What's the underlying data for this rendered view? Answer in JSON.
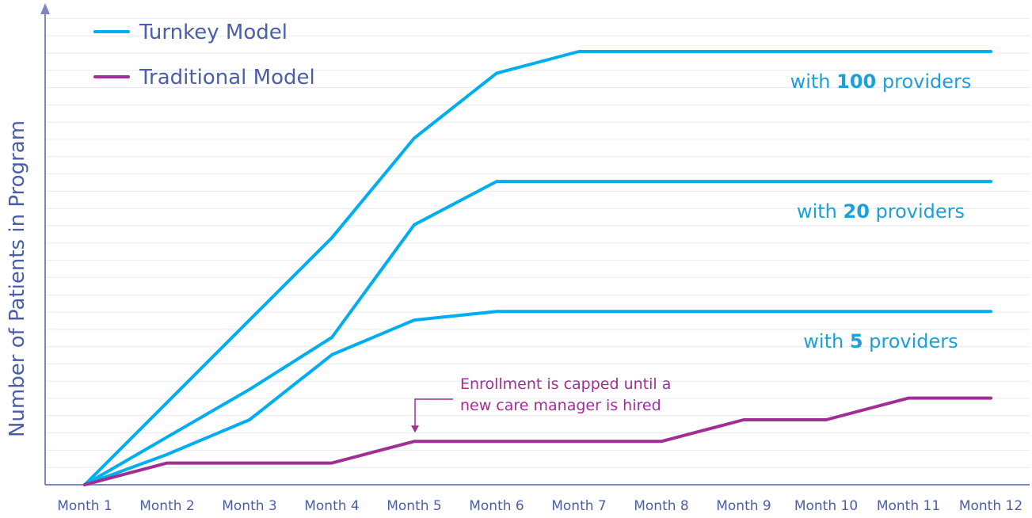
{
  "chart_data": {
    "type": "line",
    "ylabel": "Number of Patients in Program",
    "xlabel": "",
    "ylim": [
      0,
      100
    ],
    "grid": true,
    "legend_position": "top-left",
    "categories": [
      "Month 1",
      "Month 2",
      "Month 3",
      "Month 4",
      "Month 5",
      "Month 6",
      "Month 7",
      "Month 8",
      "Month 9",
      "Month 10",
      "Month 11",
      "Month 12"
    ],
    "legend": [
      {
        "name": "Turnkey Model",
        "color": "#00aeef"
      },
      {
        "name": "Traditional Model",
        "color": "#a22e93"
      }
    ],
    "series": [
      {
        "group": "Turnkey Model",
        "label_prefix": "with ",
        "label_number": "100",
        "label_suffix": " providers",
        "color": "#00aeef",
        "values": [
          0,
          19,
          38,
          57,
          80,
          95,
          100,
          100,
          100,
          100,
          100,
          100
        ]
      },
      {
        "group": "Turnkey Model",
        "label_prefix": "with ",
        "label_number": "20",
        "label_suffix": " providers",
        "color": "#00aeef",
        "values": [
          0,
          11,
          22,
          34,
          60,
          70,
          70,
          70,
          70,
          70,
          70,
          70
        ]
      },
      {
        "group": "Turnkey Model",
        "label_prefix": "with ",
        "label_number": "5",
        "label_suffix": " providers",
        "color": "#00aeef",
        "values": [
          0,
          7,
          15,
          30,
          38,
          40,
          40,
          40,
          40,
          40,
          40,
          40
        ]
      },
      {
        "group": "Traditional Model",
        "color": "#a22e93",
        "values": [
          0,
          5,
          5,
          5,
          10,
          10,
          10,
          10,
          15,
          15,
          20,
          20
        ]
      }
    ],
    "annotation": {
      "lines": [
        "Enrollment is capped until a",
        "new care manager is hired"
      ],
      "target_category": "Month 5",
      "color": "#a22e93"
    }
  }
}
